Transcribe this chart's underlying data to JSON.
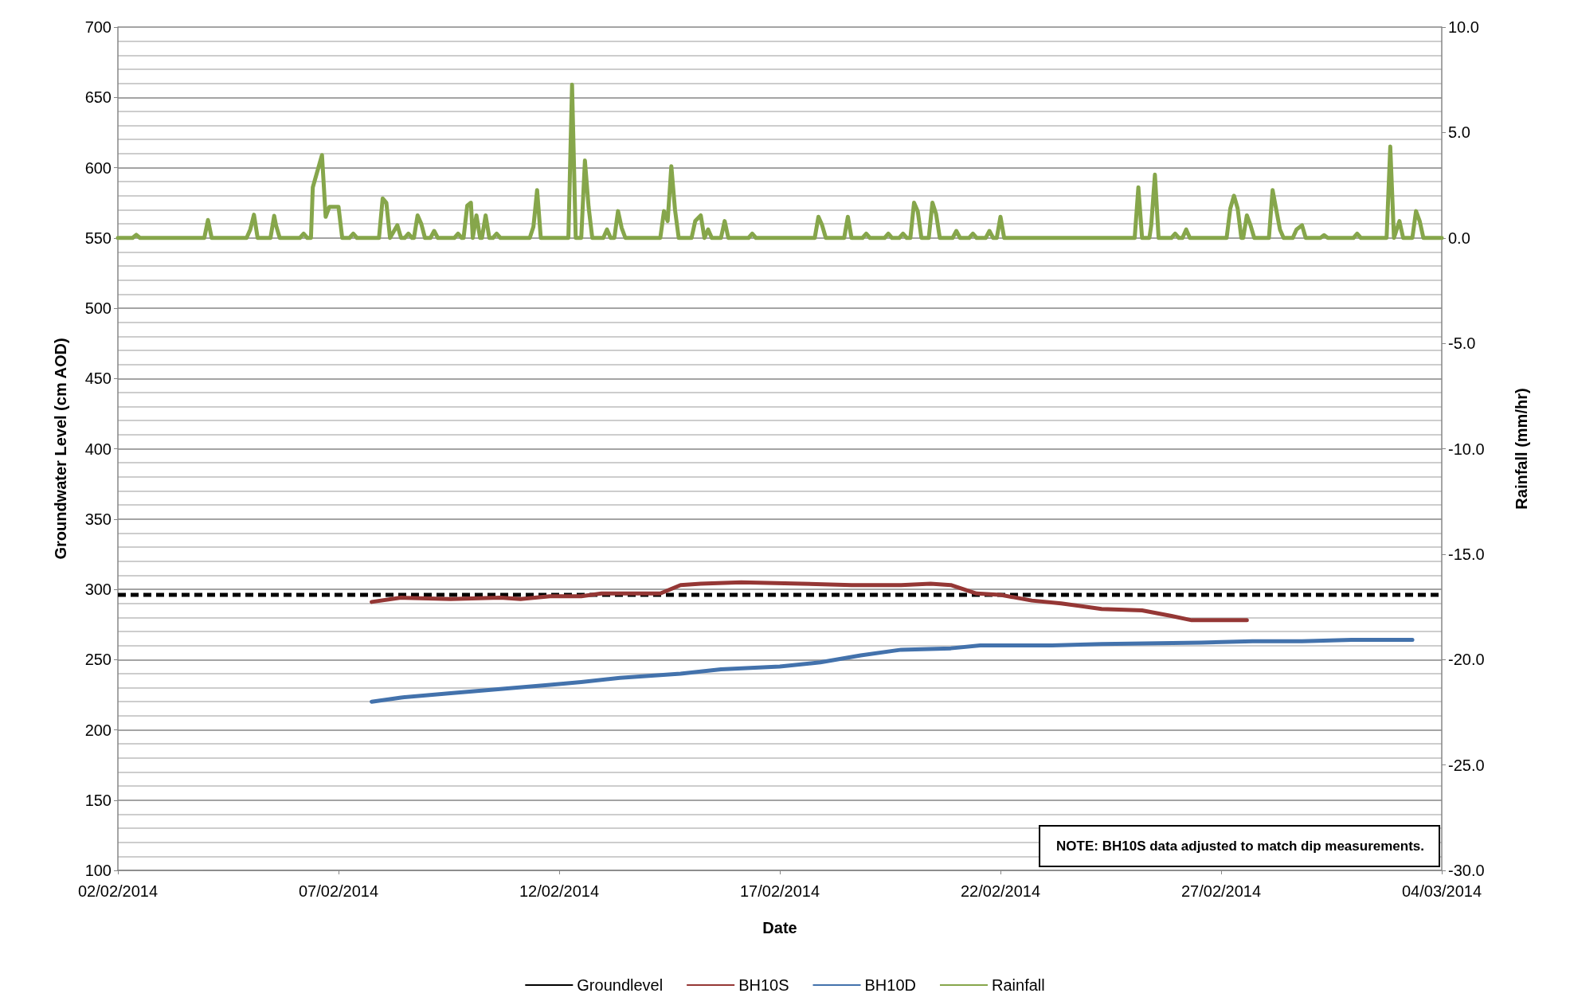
{
  "chart_data": {
    "type": "line",
    "xlabel": "Date",
    "ylabel": "Groundwater Level (cm AOD)",
    "y2label": "Rainfall (mm/hr)",
    "annotations": [
      "NOTE: BH10S data adjusted to match dip measurements."
    ],
    "xlim": [
      "2014-02-02",
      "2014-03-04"
    ],
    "xticks": [
      {
        "value": "2014-02-02",
        "label": "02/02/2014"
      },
      {
        "value": "2014-02-07",
        "label": "07/02/2014"
      },
      {
        "value": "2014-02-12",
        "label": "12/02/2014"
      },
      {
        "value": "2014-02-17",
        "label": "17/02/2014"
      },
      {
        "value": "2014-02-22",
        "label": "22/02/2014"
      },
      {
        "value": "2014-02-27",
        "label": "27/02/2014"
      },
      {
        "value": "2014-03-04",
        "label": "04/03/2014"
      }
    ],
    "ylim": [
      100,
      700
    ],
    "yticks": [
      100,
      150,
      200,
      250,
      300,
      350,
      400,
      450,
      500,
      550,
      600,
      650,
      700
    ],
    "y2lim": [
      -30,
      10
    ],
    "y2ticks": [
      {
        "value": -30,
        "label": "-30.0"
      },
      {
        "value": -25,
        "label": "-25.0"
      },
      {
        "value": -20,
        "label": "-20.0"
      },
      {
        "value": -15,
        "label": "-15.0"
      },
      {
        "value": -10,
        "label": "-10.0"
      },
      {
        "value": -5,
        "label": "-5.0"
      },
      {
        "value": 0,
        "label": "0.0"
      },
      {
        "value": 5,
        "label": "5.0"
      },
      {
        "value": 10,
        "label": "10.0"
      }
    ],
    "grid": "y",
    "legend": "bottom",
    "marker": "none",
    "series": [
      {
        "name": "Groundlevel",
        "color": "#000000",
        "line_style": "dashed",
        "x": [
          "2014-02-02",
          "2014-03-04"
        ],
        "values": [
          296,
          296
        ]
      },
      {
        "name": "BH10S",
        "color": "#953735",
        "line_style": "solid",
        "x": [
          "2014-02-07T18:00",
          "2014-02-08T10:00",
          "2014-02-09T13:00",
          "2014-02-10T16:00",
          "2014-02-11T03:00",
          "2014-02-11T19:00",
          "2014-02-12T12:00",
          "2014-02-12T23:00",
          "2014-02-13T20:00",
          "2014-02-14T07:00",
          "2014-02-14T18:00",
          "2014-02-15T05:00",
          "2014-02-16T03:00",
          "2014-02-17T12:00",
          "2014-02-18T15:00",
          "2014-02-19T18:00",
          "2014-02-20T10:00",
          "2014-02-20T21:00",
          "2014-02-21T11:00",
          "2014-02-22T00:00",
          "2014-02-22T17:00",
          "2014-02-23T09:00",
          "2014-02-24T07:00",
          "2014-02-25T05:00",
          "2014-02-25T21:00",
          "2014-02-26T08:00",
          "2014-02-27T14:00"
        ],
        "values": [
          291,
          294,
          293,
          294,
          293,
          295,
          295,
          297,
          297,
          297,
          303,
          304,
          305,
          304,
          303,
          303,
          304,
          303,
          297,
          296,
          292,
          290,
          286,
          285,
          281,
          278,
          278
        ]
      },
      {
        "name": "BH10D",
        "color": "#4372ac",
        "line_style": "solid",
        "x": [
          "2014-02-07T18:00",
          "2014-02-08T10:00",
          "2014-02-09T13:00",
          "2014-02-10T16:00",
          "2014-02-11T19:00",
          "2014-02-12T12:00",
          "2014-02-13T09:00",
          "2014-02-14T18:00",
          "2014-02-15T16:00",
          "2014-02-17T00:00",
          "2014-02-17T22:00",
          "2014-02-18T20:00",
          "2014-02-19T18:00",
          "2014-02-20T21:00",
          "2014-02-21T13:00",
          "2014-02-23T04:00",
          "2014-02-24T07:00",
          "2014-02-26T13:00",
          "2014-02-27T17:00",
          "2014-02-28T20:00",
          "2014-03-01T23:00",
          "2014-03-03T08:00"
        ],
        "values": [
          220,
          223,
          226,
          229,
          232,
          234,
          237,
          240,
          243,
          245,
          248,
          253,
          257,
          258,
          260,
          260,
          261,
          262,
          263,
          263,
          264,
          264
        ]
      },
      {
        "name": "Rainfall",
        "color": "#86a64b",
        "line_style": "solid",
        "axis": "y2",
        "x": [
          "2014-02-02T00:00",
          "2014-02-02T08:00",
          "2014-02-02T10:00",
          "2014-02-02T12:00",
          "2014-02-03T23:00",
          "2014-02-04T01:00",
          "2014-02-04T03:00",
          "2014-02-04T22:00",
          "2014-02-05T00:00",
          "2014-02-05T02:00",
          "2014-02-05T04:00",
          "2014-02-05T11:00",
          "2014-02-05T13:00",
          "2014-02-05T14:00",
          "2014-02-05T16:00",
          "2014-02-06T03:00",
          "2014-02-06T05:00",
          "2014-02-06T07:00",
          "2014-02-06T09:00",
          "2014-02-06T10:00",
          "2014-02-06T15:00",
          "2014-02-06T17:00",
          "2014-02-06T19:00",
          "2014-02-07T00:00",
          "2014-02-07T02:00",
          "2014-02-07T06:00",
          "2014-02-07T08:00",
          "2014-02-07T10:00",
          "2014-02-07T22:00",
          "2014-02-08T00:00",
          "2014-02-08T02:00",
          "2014-02-08T04:00",
          "2014-02-08T08:00",
          "2014-02-08T10:00",
          "2014-02-08T12:00",
          "2014-02-08T14:00",
          "2014-02-08T16:00",
          "2014-02-08T17:00",
          "2014-02-08T19:00",
          "2014-02-08T21:00",
          "2014-02-08T23:00",
          "2014-02-09T02:00",
          "2014-02-09T04:00",
          "2014-02-09T06:00",
          "2014-02-09T15:00",
          "2014-02-09T17:00",
          "2014-02-09T19:00",
          "2014-02-09T20:00",
          "2014-02-09T22:00",
          "2014-02-10T00:00",
          "2014-02-10T01:00",
          "2014-02-10T03:00",
          "2014-02-10T05:00",
          "2014-02-10T06:00",
          "2014-02-10T08:00",
          "2014-02-10T10:00",
          "2014-02-10T12:00",
          "2014-02-10T14:00",
          "2014-02-10T16:00",
          "2014-02-11T08:00",
          "2014-02-11T10:00",
          "2014-02-11T12:00",
          "2014-02-11T14:00",
          "2014-02-12T05:00",
          "2014-02-12T07:00",
          "2014-02-12T09:00",
          "2014-02-12T12:00",
          "2014-02-12T14:00",
          "2014-02-12T16:00",
          "2014-02-12T18:00",
          "2014-02-13T00:00",
          "2014-02-13T02:00",
          "2014-02-13T04:00",
          "2014-02-13T06:00",
          "2014-02-13T08:00",
          "2014-02-13T10:00",
          "2014-02-13T12:00",
          "2014-02-14T07:00",
          "2014-02-14T09:00",
          "2014-02-14T11:00",
          "2014-02-14T13:00",
          "2014-02-14T15:00",
          "2014-02-14T17:00",
          "2014-02-15T00:00",
          "2014-02-15T02:00",
          "2014-02-15T05:00",
          "2014-02-15T07:00",
          "2014-02-15T09:00",
          "2014-02-15T11:00",
          "2014-02-15T16:00",
          "2014-02-15T18:00",
          "2014-02-15T20:00",
          "2014-02-16T07:00",
          "2014-02-16T09:00",
          "2014-02-16T11:00",
          "2014-02-17T19:00",
          "2014-02-17T21:00",
          "2014-02-17T23:00",
          "2014-02-18T01:00",
          "2014-02-18T11:00",
          "2014-02-18T13:00",
          "2014-02-18T15:00",
          "2014-02-18T21:00",
          "2014-02-18T23:00",
          "2014-02-19T01:00",
          "2014-02-19T09:00",
          "2014-02-19T11:00",
          "2014-02-19T13:00",
          "2014-02-19T17:00",
          "2014-02-19T19:00",
          "2014-02-19T21:00",
          "2014-02-19T23:00",
          "2014-02-20T01:00",
          "2014-02-20T03:00",
          "2014-02-20T05:00",
          "2014-02-20T09:00",
          "2014-02-20T11:00",
          "2014-02-20T13:00",
          "2014-02-20T15:00",
          "2014-02-20T22:00",
          "2014-02-21T00:00",
          "2014-02-21T02:00",
          "2014-02-21T07:00",
          "2014-02-21T09:00",
          "2014-02-21T11:00",
          "2014-02-21T16:00",
          "2014-02-21T18:00",
          "2014-02-21T20:00",
          "2014-02-21T22:00",
          "2014-02-22T00:00",
          "2014-02-22T02:00",
          "2014-02-25T01:00",
          "2014-02-25T03:00",
          "2014-02-25T05:00",
          "2014-02-25T09:00",
          "2014-02-25T10:00",
          "2014-02-25T12:00",
          "2014-02-25T14:00",
          "2014-02-25T21:00",
          "2014-02-25T23:00",
          "2014-02-26T01:00",
          "2014-02-26T03:00",
          "2014-02-26T05:00",
          "2014-02-26T07:00",
          "2014-02-27T03:00",
          "2014-02-27T05:00",
          "2014-02-27T07:00",
          "2014-02-27T09:00",
          "2014-02-27T11:00",
          "2014-02-27T12:00",
          "2014-02-27T14:00",
          "2014-02-27T16:00",
          "2014-02-27T18:00",
          "2014-02-28T02:00",
          "2014-02-28T04:00",
          "2014-02-28T06:00",
          "2014-02-28T08:00",
          "2014-02-28T10:00",
          "2014-02-28T15:00",
          "2014-02-28T17:00",
          "2014-02-28T20:00",
          "2014-02-28T22:00",
          "2014-03-01T06:00",
          "2014-03-01T08:00",
          "2014-03-01T10:00",
          "2014-03-02T00:00",
          "2014-03-02T02:00",
          "2014-03-02T04:00",
          "2014-03-02T18:00",
          "2014-03-02T20:00",
          "2014-03-02T22:00",
          "2014-03-03T01:00",
          "2014-03-03T03:00",
          "2014-03-03T08:00",
          "2014-03-03T10:00",
          "2014-03-03T12:00",
          "2014-03-03T14:00",
          "2014-03-04T00:00"
        ],
        "values": [
          0,
          0,
          0.15,
          0,
          0,
          0.85,
          0,
          0,
          0.4,
          1.1,
          0,
          0,
          1.05,
          0.6,
          0,
          0,
          0.2,
          0,
          0,
          2.4,
          3.93,
          1.0,
          1.47,
          1.47,
          0,
          0,
          0.2,
          0,
          0,
          1.87,
          1.67,
          0,
          0.6,
          0,
          0,
          0.2,
          0,
          0,
          1.07,
          0.67,
          0,
          0,
          0.33,
          0,
          0,
          0.2,
          0,
          0,
          1.53,
          1.67,
          0,
          1.07,
          0,
          0,
          1.07,
          0,
          0,
          0.2,
          0,
          0,
          0.53,
          2.27,
          0,
          0,
          7.27,
          0,
          0,
          3.67,
          1.47,
          0,
          0,
          0.4,
          0,
          0,
          1.27,
          0.47,
          0,
          0,
          1.27,
          0.8,
          3.4,
          1.33,
          0,
          0,
          0.8,
          1.07,
          0,
          0.4,
          0,
          0,
          0.8,
          0,
          0,
          0.2,
          0,
          0,
          1.0,
          0.6,
          0,
          0,
          1.0,
          0,
          0,
          0.2,
          0,
          0,
          0.2,
          0,
          0,
          0.2,
          0,
          0,
          1.67,
          1.27,
          0,
          0,
          1.67,
          1.13,
          0,
          0,
          0.33,
          0,
          0,
          0.2,
          0,
          0,
          0.33,
          0,
          0,
          1.0,
          0,
          0,
          2.4,
          0,
          0,
          0.6,
          3.0,
          0,
          0,
          0.2,
          0,
          0,
          0.4,
          0,
          0,
          1.4,
          2.0,
          1.4,
          0,
          0,
          1.07,
          0.6,
          0,
          0,
          2.27,
          1.33,
          0.4,
          0,
          0,
          0.4,
          0.6,
          0,
          0,
          0.13,
          0,
          0,
          0.2,
          0,
          0,
          4.33,
          0,
          0.8,
          0,
          0,
          1.27,
          0.8,
          0,
          0
        ]
      }
    ]
  }
}
